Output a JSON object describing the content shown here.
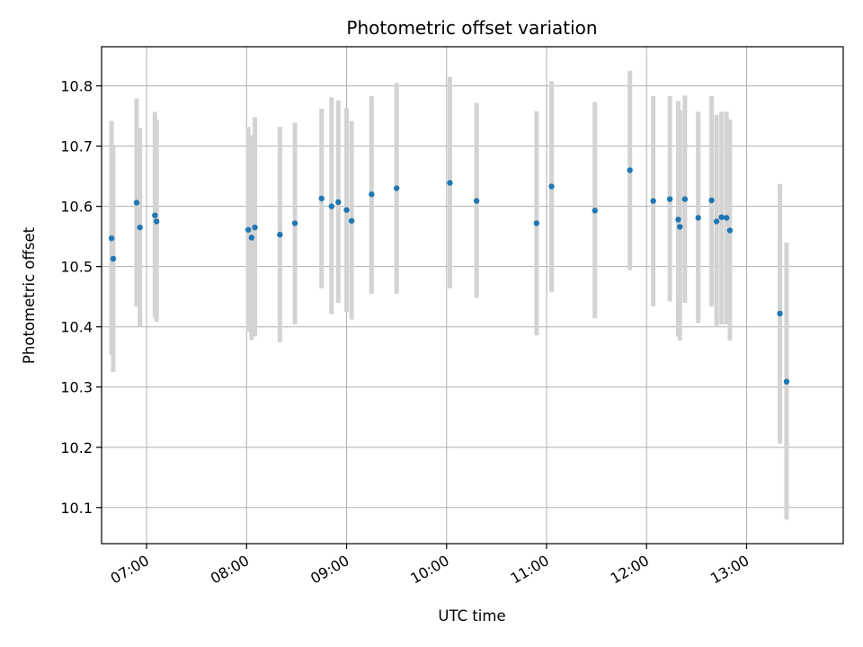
{
  "chart_data": {
    "type": "scatter",
    "title": "Photometric offset variation",
    "xlabel": "UTC time",
    "ylabel": "Photometric offset",
    "x_ticks": [
      "07:00",
      "08:00",
      "09:00",
      "10:00",
      "11:00",
      "12:00",
      "13:00"
    ],
    "y_ticks": [
      "10.1",
      "10.2",
      "10.3",
      "10.4",
      "10.5",
      "10.6",
      "10.7",
      "10.8"
    ],
    "xlim": [
      "06:33",
      "13:58"
    ],
    "ylim": [
      10.04,
      10.865
    ],
    "grid": true,
    "marker_color": "#1f77b4",
    "errorbar_color": "#d3d3d3",
    "points": [
      {
        "t": "06:39",
        "y": 10.547,
        "lo": 10.353,
        "hi": 10.742
      },
      {
        "t": "06:40",
        "y": 10.513,
        "lo": 10.325,
        "hi": 10.7
      },
      {
        "t": "06:54",
        "y": 10.606,
        "lo": 10.434,
        "hi": 10.779
      },
      {
        "t": "06:56",
        "y": 10.565,
        "lo": 10.4,
        "hi": 10.73
      },
      {
        "t": "07:05",
        "y": 10.585,
        "lo": 10.415,
        "hi": 10.757
      },
      {
        "t": "07:06",
        "y": 10.575,
        "lo": 10.408,
        "hi": 10.744
      },
      {
        "t": "08:01",
        "y": 10.561,
        "lo": 10.392,
        "hi": 10.732
      },
      {
        "t": "08:03",
        "y": 10.548,
        "lo": 10.378,
        "hi": 10.718
      },
      {
        "t": "08:05",
        "y": 10.565,
        "lo": 10.384,
        "hi": 10.748
      },
      {
        "t": "08:20",
        "y": 10.553,
        "lo": 10.374,
        "hi": 10.732
      },
      {
        "t": "08:29",
        "y": 10.572,
        "lo": 10.404,
        "hi": 10.739
      },
      {
        "t": "08:45",
        "y": 10.613,
        "lo": 10.464,
        "hi": 10.762
      },
      {
        "t": "08:51",
        "y": 10.6,
        "lo": 10.421,
        "hi": 10.781
      },
      {
        "t": "08:55",
        "y": 10.607,
        "lo": 10.44,
        "hi": 10.776
      },
      {
        "t": "09:00",
        "y": 10.594,
        "lo": 10.425,
        "hi": 10.763
      },
      {
        "t": "09:03",
        "y": 10.576,
        "lo": 10.412,
        "hi": 10.742
      },
      {
        "t": "09:15",
        "y": 10.62,
        "lo": 10.455,
        "hi": 10.783
      },
      {
        "t": "09:30",
        "y": 10.63,
        "lo": 10.455,
        "hi": 10.805
      },
      {
        "t": "10:02",
        "y": 10.639,
        "lo": 10.464,
        "hi": 10.815
      },
      {
        "t": "10:18",
        "y": 10.609,
        "lo": 10.448,
        "hi": 10.772
      },
      {
        "t": "10:54",
        "y": 10.572,
        "lo": 10.386,
        "hi": 10.758
      },
      {
        "t": "11:03",
        "y": 10.633,
        "lo": 10.458,
        "hi": 10.808
      },
      {
        "t": "11:29",
        "y": 10.593,
        "lo": 10.414,
        "hi": 10.773
      },
      {
        "t": "11:50",
        "y": 10.66,
        "lo": 10.494,
        "hi": 10.825
      },
      {
        "t": "12:04",
        "y": 10.609,
        "lo": 10.434,
        "hi": 10.783
      },
      {
        "t": "12:14",
        "y": 10.612,
        "lo": 10.442,
        "hi": 10.783
      },
      {
        "t": "12:19",
        "y": 10.578,
        "lo": 10.384,
        "hi": 10.775
      },
      {
        "t": "12:20",
        "y": 10.566,
        "lo": 10.377,
        "hi": 10.76
      },
      {
        "t": "12:23",
        "y": 10.612,
        "lo": 10.44,
        "hi": 10.784
      },
      {
        "t": "12:31",
        "y": 10.581,
        "lo": 10.406,
        "hi": 10.757
      },
      {
        "t": "12:39",
        "y": 10.61,
        "lo": 10.434,
        "hi": 10.783
      },
      {
        "t": "12:42",
        "y": 10.575,
        "lo": 10.4,
        "hi": 10.752
      },
      {
        "t": "12:45",
        "y": 10.582,
        "lo": 10.404,
        "hi": 10.757
      },
      {
        "t": "12:48",
        "y": 10.581,
        "lo": 10.404,
        "hi": 10.757
      },
      {
        "t": "12:50",
        "y": 10.56,
        "lo": 10.377,
        "hi": 10.744
      },
      {
        "t": "13:20",
        "y": 10.422,
        "lo": 10.206,
        "hi": 10.637
      },
      {
        "t": "13:24",
        "y": 10.309,
        "lo": 10.08,
        "hi": 10.54
      }
    ]
  }
}
